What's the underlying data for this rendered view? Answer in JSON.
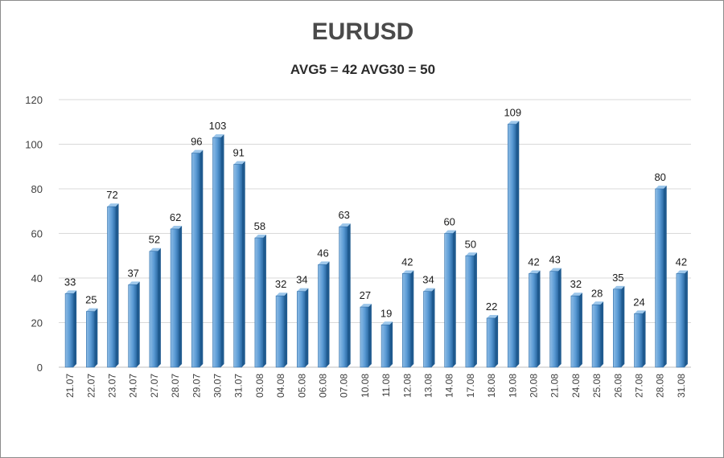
{
  "chart_data": {
    "type": "bar",
    "title": "EURUSD",
    "subtitle": "AVG5 = 42 AVG30 = 50",
    "xlabel": "",
    "ylabel": "",
    "ylim": [
      0,
      120
    ],
    "yticks": [
      0,
      20,
      40,
      60,
      80,
      100,
      120
    ],
    "grid": true,
    "categories": [
      "21.07",
      "22.07",
      "23.07",
      "24.07",
      "27.07",
      "28.07",
      "29.07",
      "30.07",
      "31.07",
      "03.08",
      "04.08",
      "05.08",
      "06.08",
      "07.08",
      "10.08",
      "11.08",
      "12.08",
      "13.08",
      "14.08",
      "17.08",
      "18.08",
      "19.08",
      "20.08",
      "21.08",
      "24.08",
      "25.08",
      "26.08",
      "27.08",
      "28.08",
      "31.08"
    ],
    "values": [
      33,
      25,
      72,
      37,
      52,
      62,
      96,
      103,
      91,
      58,
      32,
      34,
      46,
      63,
      27,
      19,
      42,
      34,
      60,
      50,
      22,
      109,
      42,
      43,
      32,
      28,
      35,
      24,
      80,
      42
    ],
    "colors": {
      "bar": "#5b9bd5",
      "bar_dark": "#2f6ea8",
      "grid": "#d9d9d9"
    }
  }
}
